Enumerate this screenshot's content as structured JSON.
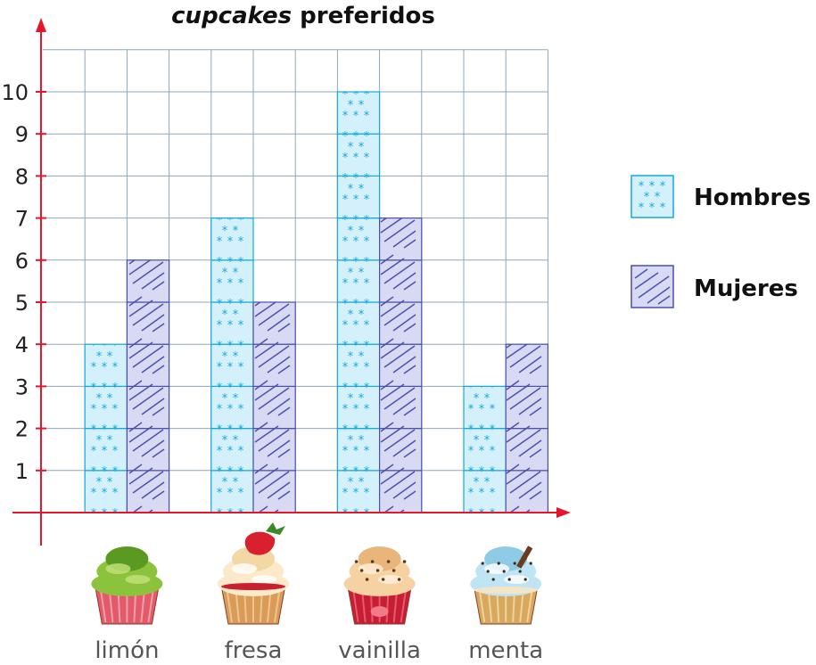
{
  "chart_data": {
    "type": "bar",
    "title_emphasis": "cupcakes",
    "title_rest": " preferidos",
    "categories": [
      "limón",
      "fresa",
      "vainilla",
      "menta"
    ],
    "series": [
      {
        "name": "Hombres",
        "values": [
          4,
          7,
          10,
          3
        ],
        "color": "#d4f1fb",
        "pattern_color": "#12a9df",
        "pattern": "stars"
      },
      {
        "name": "Mujeres",
        "values": [
          6,
          5,
          7,
          4
        ],
        "color": "#d8d9f2",
        "pattern_color": "#4a4fae",
        "pattern": "hatch"
      }
    ],
    "ylim": [
      0,
      11
    ],
    "yticks": [
      1,
      2,
      3,
      4,
      5,
      6,
      7,
      8,
      9,
      10
    ],
    "grid": true,
    "legend": "right",
    "axis_color": "#e4162b",
    "grid_color": "#8fa7b8",
    "cupcake_icons": [
      "lime-cupcake-icon",
      "strawberry-cupcake-icon",
      "vanilla-cupcake-icon",
      "mint-cupcake-icon"
    ]
  }
}
